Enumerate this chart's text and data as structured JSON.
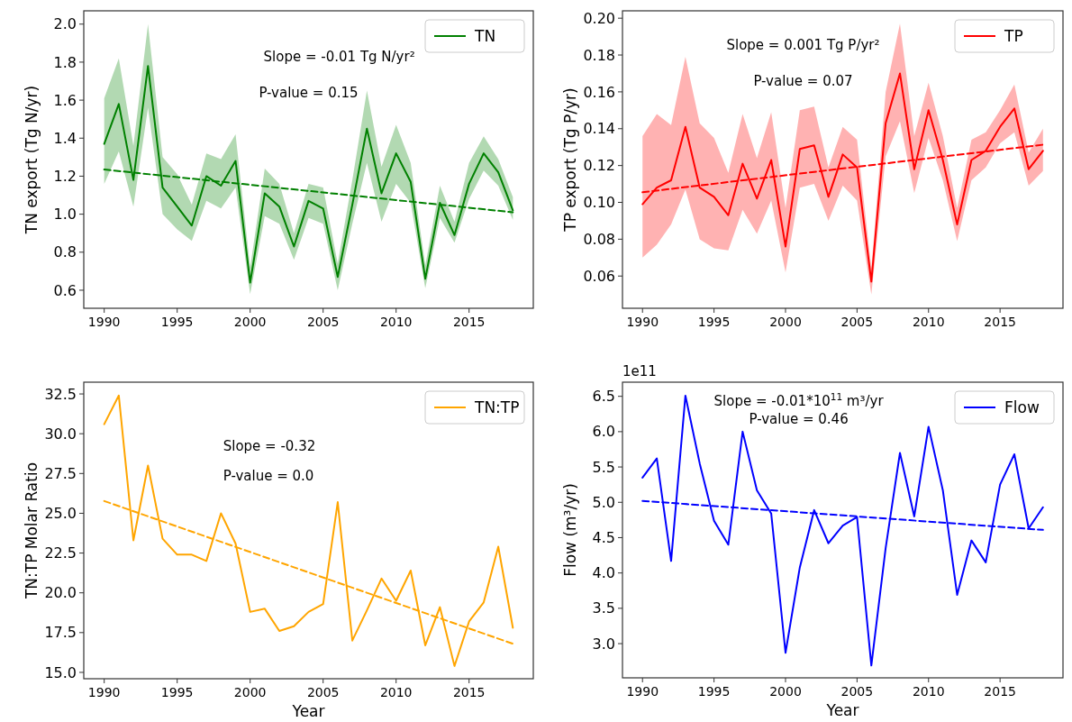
{
  "chart_data": [
    {
      "type": "line",
      "ylabel": "TN export (Tg N/yr)",
      "xlim": [
        1988.6,
        2019.4
      ],
      "ylim": [
        0.505,
        2.07
      ],
      "xticks": [
        1990,
        1995,
        2000,
        2005,
        2010,
        2015
      ],
      "yticks": [
        {
          "value": 0.6,
          "label": "0.6"
        },
        {
          "value": 0.8,
          "label": "0.8"
        },
        {
          "value": 1.0,
          "label": "1.0"
        },
        {
          "value": 1.2,
          "label": "1.2"
        },
        {
          "value": 1.4,
          "label": "1.4"
        },
        {
          "value": 1.6,
          "label": "1.6"
        },
        {
          "value": 1.8,
          "label": "1.8"
        },
        {
          "value": 2.0,
          "label": "2.0"
        }
      ],
      "legend": "top right",
      "grid": false,
      "annotations": [
        "Slope = -0.01 Tg N/yr²",
        "P-value = 0.15"
      ],
      "x": [
        1990,
        1991,
        1992,
        1993,
        1994,
        1995,
        1996,
        1997,
        1998,
        1999,
        2000,
        2001,
        2002,
        2003,
        2004,
        2005,
        2006,
        2007,
        2008,
        2009,
        2010,
        2011,
        2012,
        2013,
        2014,
        2015,
        2016,
        2017,
        2018
      ],
      "series": [
        {
          "name": "TN",
          "color": "#008000",
          "values": [
            1.37,
            1.58,
            1.18,
            1.78,
            1.14,
            1.04,
            0.94,
            1.2,
            1.15,
            1.28,
            0.64,
            1.11,
            1.04,
            0.83,
            1.07,
            1.03,
            0.67,
            1.05,
            1.45,
            1.11,
            1.32,
            1.17,
            0.66,
            1.06,
            0.89,
            1.16,
            1.32,
            1.22,
            1.02
          ],
          "lower": [
            1.16,
            1.33,
            1.04,
            1.56,
            1.0,
            0.92,
            0.86,
            1.07,
            1.03,
            1.14,
            0.58,
            0.99,
            0.95,
            0.76,
            0.98,
            0.95,
            0.6,
            0.95,
            1.27,
            0.96,
            1.16,
            1.06,
            0.61,
            0.98,
            0.85,
            1.08,
            1.23,
            1.15,
            0.97
          ],
          "upper": [
            1.61,
            1.82,
            1.36,
            2.0,
            1.3,
            1.21,
            1.05,
            1.32,
            1.29,
            1.42,
            0.72,
            1.24,
            1.16,
            0.9,
            1.16,
            1.14,
            0.74,
            1.18,
            1.65,
            1.25,
            1.47,
            1.27,
            0.73,
            1.15,
            0.96,
            1.27,
            1.41,
            1.29,
            1.09
          ]
        },
        {
          "type": "line",
          "color": "#008000",
          "line_style": "dashed",
          "values": [
            1.235,
            null,
            null,
            null,
            null,
            null,
            null,
            null,
            null,
            null,
            null,
            null,
            null,
            null,
            null,
            null,
            null,
            null,
            null,
            null,
            null,
            null,
            null,
            null,
            null,
            null,
            null,
            null,
            1.01
          ]
        }
      ]
    },
    {
      "type": "line",
      "ylabel": "TP export (Tg P/yr)",
      "xlim": [
        1988.6,
        2019.4
      ],
      "ylim": [
        0.0425,
        0.204
      ],
      "xticks": [
        1990,
        1995,
        2000,
        2005,
        2010,
        2015
      ],
      "yticks": [
        0.06,
        0.08,
        {
          "value": 0.1,
          "label": "0.10"
        },
        0.12,
        0.14,
        0.16,
        0.18,
        {
          "value": 0.2,
          "label": "0.20"
        }
      ],
      "legend": "top right",
      "grid": false,
      "annotations": [
        "Slope = 0.001 Tg P/yr²",
        "P-value = 0.07"
      ],
      "x": [
        1990,
        1991,
        1992,
        1993,
        1994,
        1995,
        1996,
        1997,
        1998,
        1999,
        2000,
        2001,
        2002,
        2003,
        2004,
        2005,
        2006,
        2007,
        2008,
        2009,
        2010,
        2011,
        2012,
        2013,
        2014,
        2015,
        2016,
        2017,
        2018
      ],
      "series": [
        {
          "name": "TP",
          "color": "#ff0000",
          "values": [
            0.099,
            0.108,
            0.112,
            0.141,
            0.108,
            0.103,
            0.093,
            0.121,
            0.102,
            0.123,
            0.076,
            0.129,
            0.131,
            0.103,
            0.126,
            0.119,
            0.057,
            0.143,
            0.17,
            0.118,
            0.15,
            0.123,
            0.088,
            0.123,
            0.128,
            0.141,
            0.151,
            0.118,
            0.128
          ],
          "lower": [
            0.07,
            0.077,
            0.088,
            0.107,
            0.08,
            0.075,
            0.074,
            0.096,
            0.083,
            0.101,
            0.062,
            0.108,
            0.11,
            0.09,
            0.109,
            0.101,
            0.05,
            0.125,
            0.144,
            0.105,
            0.135,
            0.112,
            0.079,
            0.112,
            0.119,
            0.132,
            0.138,
            0.109,
            0.117
          ],
          "upper": [
            0.136,
            0.148,
            0.142,
            0.179,
            0.143,
            0.135,
            0.116,
            0.148,
            0.124,
            0.149,
            0.097,
            0.15,
            0.152,
            0.119,
            0.141,
            0.134,
            0.064,
            0.16,
            0.197,
            0.136,
            0.165,
            0.136,
            0.097,
            0.134,
            0.138,
            0.15,
            0.164,
            0.127,
            0.14
          ]
        },
        {
          "type": "line",
          "color": "#ff0000",
          "line_style": "dashed",
          "values": [
            0.1055,
            null,
            null,
            null,
            null,
            null,
            null,
            null,
            null,
            null,
            null,
            null,
            null,
            null,
            null,
            null,
            null,
            null,
            null,
            null,
            null,
            null,
            null,
            null,
            null,
            null,
            null,
            null,
            0.1313
          ]
        }
      ]
    },
    {
      "type": "line",
      "xlabel": "Year",
      "ylabel": "TN:TP Molar Ratio",
      "xlim": [
        1988.6,
        2019.4
      ],
      "ylim": [
        14.6,
        33.24
      ],
      "xticks": [
        1990,
        1995,
        2000,
        2005,
        2010,
        2015
      ],
      "yticks": [
        {
          "value": 15,
          "label": "15.0"
        },
        17.5,
        {
          "value": 20,
          "label": "20.0"
        },
        22.5,
        {
          "value": 25,
          "label": "25.0"
        },
        27.5,
        {
          "value": 30,
          "label": "30.0"
        },
        32.5
      ],
      "legend": "top right",
      "grid": false,
      "annotations": [
        "Slope = -0.32",
        "P-value = 0.0"
      ],
      "x": [
        1990,
        1991,
        1992,
        1993,
        1994,
        1995,
        1996,
        1997,
        1998,
        1999,
        2000,
        2001,
        2002,
        2003,
        2004,
        2005,
        2006,
        2007,
        2008,
        2009,
        2010,
        2011,
        2012,
        2013,
        2014,
        2015,
        2016,
        2017,
        2018
      ],
      "series": [
        {
          "name": "TN:TP",
          "color": "#ffa500",
          "values": [
            30.6,
            32.4,
            23.3,
            28.0,
            23.4,
            22.4,
            22.4,
            22.0,
            25.0,
            23.1,
            18.8,
            19.0,
            17.6,
            17.9,
            18.8,
            19.3,
            25.7,
            17.0,
            18.9,
            20.9,
            19.5,
            21.4,
            16.7,
            19.1,
            15.4,
            18.2,
            19.4,
            22.9,
            17.8
          ]
        },
        {
          "type": "line",
          "color": "#ffa500",
          "line_style": "dashed",
          "values": [
            25.77,
            null,
            null,
            null,
            null,
            null,
            null,
            null,
            null,
            null,
            null,
            null,
            null,
            null,
            null,
            null,
            null,
            null,
            null,
            null,
            null,
            null,
            null,
            null,
            null,
            null,
            null,
            null,
            16.8
          ]
        }
      ]
    },
    {
      "type": "line",
      "xlabel": "Year",
      "ylabel": "Flow (m³/yr)",
      "xlim": [
        1988.6,
        2019.4
      ],
      "ylim": [
        2.516,
        6.7
      ],
      "xticks": [
        1990,
        1995,
        2000,
        2005,
        2010,
        2015
      ],
      "yticks": [
        {
          "value": 3,
          "label": "3.0"
        },
        3.5,
        {
          "value": 4,
          "label": "4.0"
        },
        4.5,
        {
          "value": 5,
          "label": "5.0"
        },
        5.5,
        {
          "value": 6,
          "label": "6.0"
        },
        6.5
      ],
      "legend": "top right",
      "grid": false,
      "annotations": [
        "1e11",
        "Slope = -0.01*10$^{11}$ m³/yr",
        "P-value = 0.46"
      ],
      "x": [
        1990,
        1991,
        1992,
        1993,
        1994,
        1995,
        1996,
        1997,
        1998,
        1999,
        2000,
        2001,
        2002,
        2003,
        2004,
        2005,
        2006,
        2007,
        2008,
        2009,
        2010,
        2011,
        2012,
        2013,
        2014,
        2015,
        2016,
        2017,
        2018
      ],
      "series": [
        {
          "name": "Flow",
          "color": "#0000ff",
          "values": [
            5.35,
            5.62,
            4.17,
            6.51,
            5.55,
            4.74,
            4.4,
            6.0,
            5.17,
            4.84,
            2.87,
            4.08,
            4.89,
            4.42,
            4.67,
            4.79,
            2.69,
            4.35,
            5.7,
            4.8,
            6.07,
            5.17,
            3.69,
            4.46,
            4.15,
            5.25,
            5.68,
            4.63,
            4.93
          ]
        },
        {
          "type": "line",
          "color": "#0000ff",
          "line_style": "dashed",
          "values": [
            5.02,
            null,
            null,
            null,
            null,
            null,
            null,
            null,
            null,
            null,
            null,
            null,
            null,
            null,
            null,
            null,
            null,
            null,
            null,
            null,
            null,
            null,
            null,
            null,
            null,
            null,
            null,
            null,
            4.61
          ]
        }
      ]
    }
  ]
}
